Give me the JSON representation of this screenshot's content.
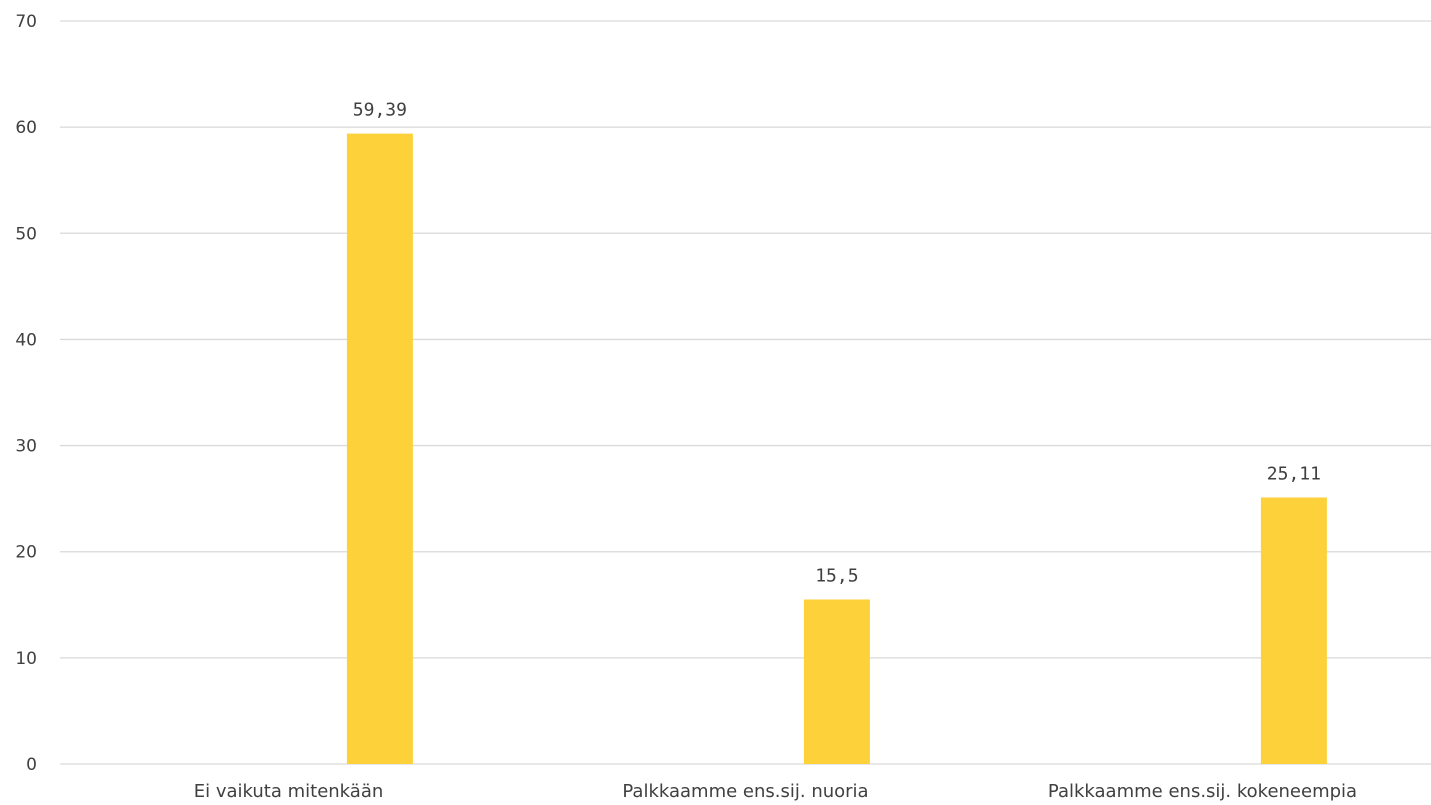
{
  "chart_data": {
    "type": "bar",
    "categories": [
      "Ei vaikuta mitenkään",
      "Palkkaamme ens.sij. nuoria",
      "Palkkaamme ens.sij. kokeneempia"
    ],
    "values": [
      59.39,
      15.5,
      25.11
    ],
    "data_labels": [
      "59,39",
      "15,5",
      "25,11"
    ],
    "title": "",
    "xlabel": "",
    "ylabel": "",
    "ylim": [
      0,
      70
    ],
    "yticks": [
      0,
      10,
      20,
      30,
      40,
      50,
      60,
      70
    ],
    "grid": true,
    "legend": "none",
    "bar_color": "#FCD13A",
    "grid_color": "#D9D9D9",
    "text_color": "#404040"
  }
}
